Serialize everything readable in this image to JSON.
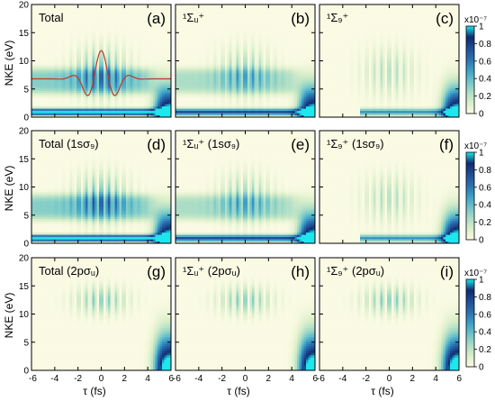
{
  "figure": {
    "ylabel": "NKE (eV)",
    "xlabel": "τ (fs)",
    "colorbar_unit": "x10⁻⁷"
  },
  "chart_data": {
    "type": "heatmap",
    "x_range": [
      -6,
      6
    ],
    "y_range": [
      0,
      20
    ],
    "x_ticks": [
      "-6",
      "-4",
      "-2",
      "0",
      "2",
      "4",
      "6"
    ],
    "y_ticks": [
      "0",
      "5",
      "10",
      "15",
      "20"
    ],
    "colorbar": {
      "range": [
        0,
        1
      ],
      "ticks": [
        "0",
        "0.2",
        "0.4",
        "0.6",
        "0.8",
        "1"
      ],
      "unit": "x10⁻⁷",
      "stops": [
        "#fbfbe4",
        "#d9eec9",
        "#a8dcc6",
        "#6cc3c9",
        "#3a9ec7",
        "#2a6fae",
        "#1d4e96",
        "#102a6f",
        "#1fe7ee"
      ]
    },
    "panels": [
      {
        "id": "(a)",
        "label": "Total",
        "strong": 1.0,
        "sym": "both",
        "channel": "total"
      },
      {
        "id": "(b)",
        "label": "¹Σᵤ⁺",
        "strong": 0.75,
        "sym": "u",
        "channel": "total"
      },
      {
        "id": "(c)",
        "label": "¹Σ₉⁺",
        "strong": 0.55,
        "sym": "g",
        "channel": "total"
      },
      {
        "id": "(d)",
        "label": "Total (1sσ₉)",
        "strong": 1.0,
        "sym": "both",
        "channel": "1s"
      },
      {
        "id": "(e)",
        "label": "¹Σᵤ⁺ (1sσ₉)",
        "strong": 0.75,
        "sym": "u",
        "channel": "1s"
      },
      {
        "id": "(f)",
        "label": "¹Σ₉⁺ (1sσ₉)",
        "strong": 0.55,
        "sym": "g",
        "channel": "1s"
      },
      {
        "id": "(g)",
        "label": "Total (2pσᵤ)",
        "strong": 0.35,
        "sym": "both",
        "channel": "2p"
      },
      {
        "id": "(h)",
        "label": "¹Σᵤ⁺ (2pσᵤ)",
        "strong": 0.3,
        "sym": "u",
        "channel": "2p"
      },
      {
        "id": "(i)",
        "label": "¹Σ₉⁺ (2pσᵤ)",
        "strong": 0.3,
        "sym": "g",
        "channel": "2p"
      }
    ],
    "pulse_overlay": {
      "panel": "(a)",
      "color": "#c0392b",
      "baseline_eV": 6.8,
      "amplitude_eV": 5.0,
      "period_fs": 2.6,
      "envelope_sigma_fs": 1.7,
      "flat_until_fs": -4.0
    }
  }
}
